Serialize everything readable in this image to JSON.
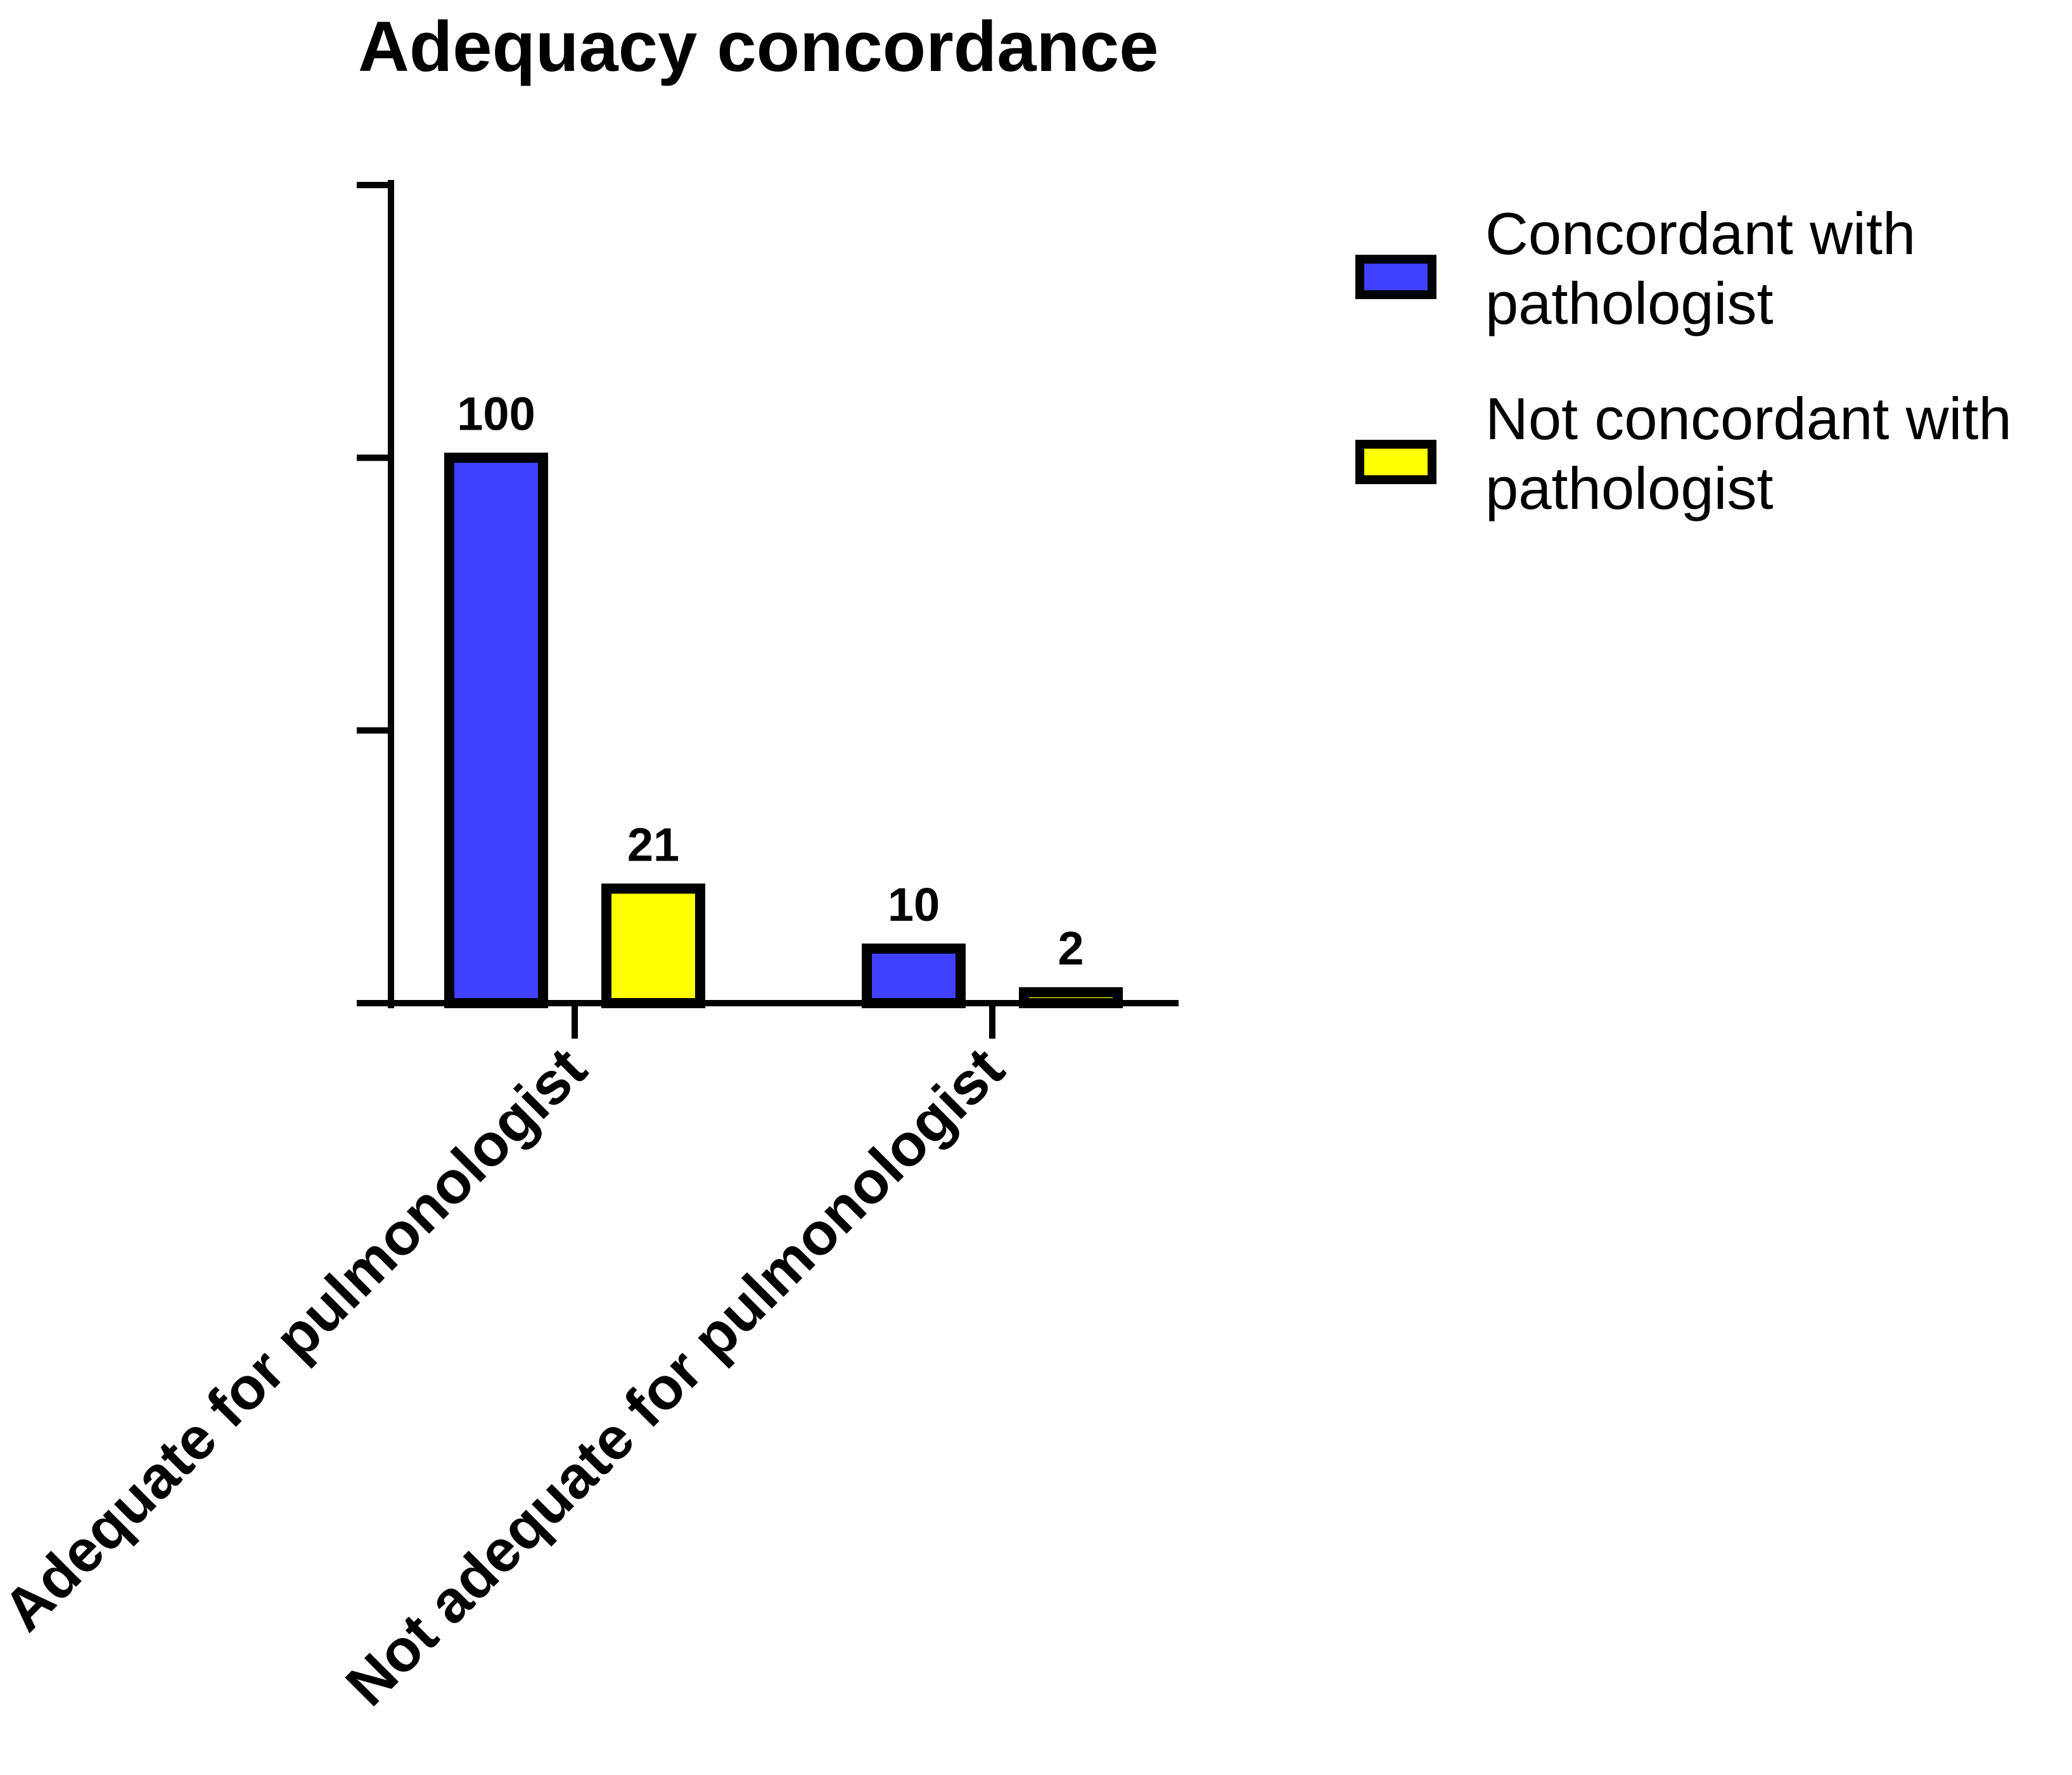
{
  "chart_data": {
    "type": "bar",
    "title": "Adequacy concordance",
    "xlabel": "",
    "ylabel": "",
    "categories": [
      "Adequate for pulmonologist",
      "Not adequate for pulmonologist"
    ],
    "series": [
      {
        "name": "Concordant with pathologist",
        "color": "#4040ff",
        "values": [
          100,
          10
        ]
      },
      {
        "name": "Not concordant with pathologist",
        "color": "#ffff00",
        "values": [
          21,
          2
        ]
      }
    ],
    "ylim": [
      0,
      150
    ],
    "yticks": [
      0,
      50,
      100,
      150
    ],
    "show_ytick_labels": false,
    "grid": false,
    "legend_position": "top-right",
    "data_labels": true,
    "bar_edge_color": "#000000"
  }
}
